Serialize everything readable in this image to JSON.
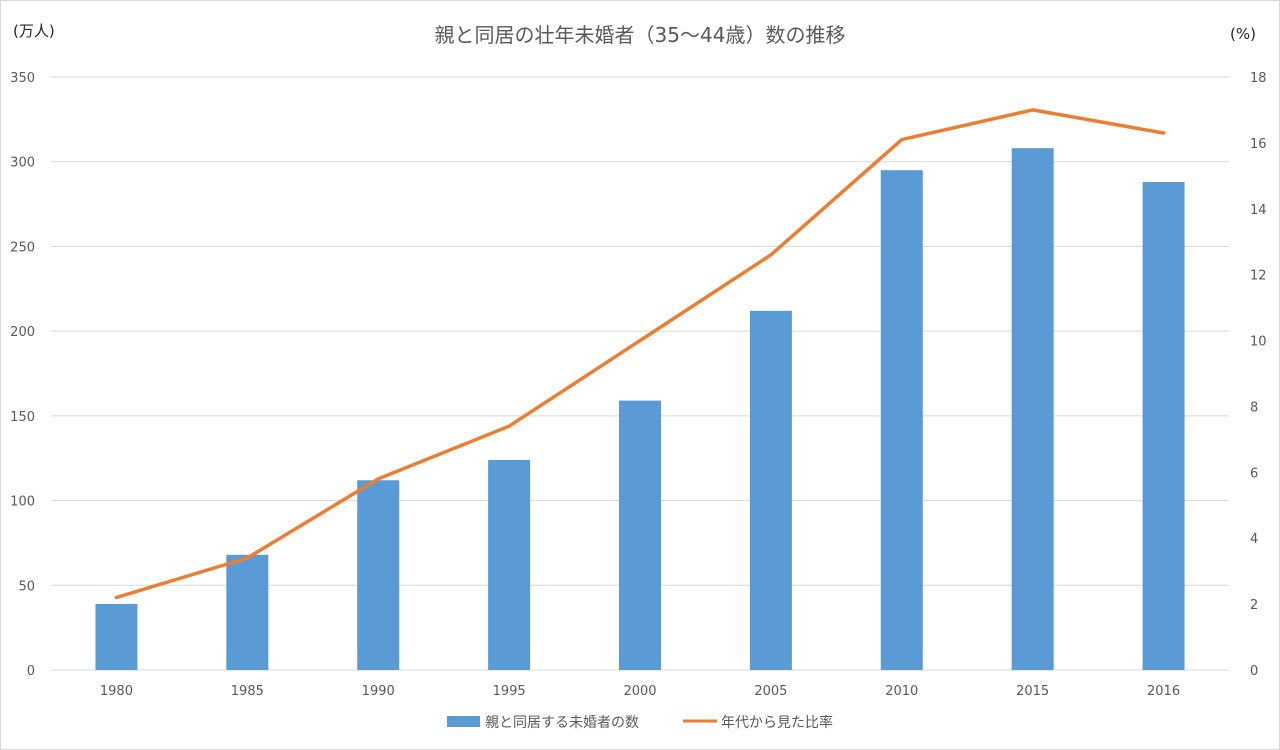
{
  "chart_data": {
    "type": "bar",
    "title": "親と同居の壮年未婚者（35～44歳）数の推移",
    "categories": [
      "1980",
      "1985",
      "1990",
      "1995",
      "2000",
      "2005",
      "2010",
      "2015",
      "2016"
    ],
    "y_left_unit": "(万人)",
    "y_right_unit": "(%)",
    "y_left_range": [
      0,
      350
    ],
    "y_left_ticks": [
      "0",
      "50",
      "100",
      "150",
      "200",
      "250",
      "300",
      "350"
    ],
    "y_right_range": [
      0,
      18
    ],
    "y_right_ticks": [
      "0",
      "2",
      "4",
      "6",
      "8",
      "10",
      "12",
      "14",
      "16",
      "18"
    ],
    "grid": true,
    "legend_position": "bottom",
    "series": [
      {
        "name": "親と同居する未婚者の数",
        "type": "bar",
        "axis": "left",
        "color": "#5b9bd5",
        "values": [
          39,
          68,
          112,
          124,
          159,
          212,
          295,
          308,
          288
        ]
      },
      {
        "name": "年代から見た比率",
        "type": "line",
        "axis": "right",
        "color": "#ed7d31",
        "values": [
          2.2,
          3.4,
          5.8,
          7.4,
          10.0,
          12.6,
          16.1,
          17.0,
          16.3
        ]
      }
    ]
  }
}
